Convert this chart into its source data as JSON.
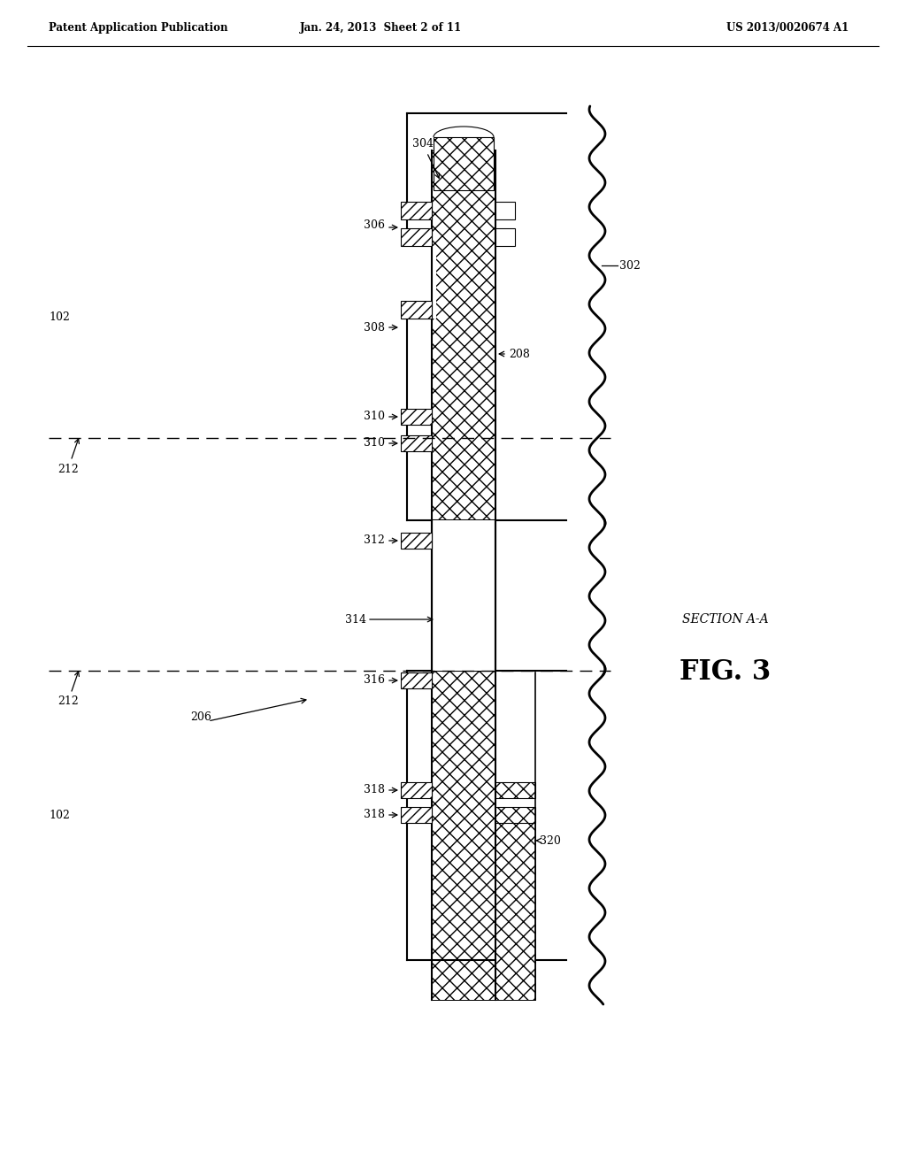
{
  "background_color": "#ffffff",
  "header_left": "Patent Application Publication",
  "header_mid": "Jan. 24, 2013  Sheet 2 of 11",
  "header_right": "US 2013/0020674 A1",
  "fig_label": "FIG. 3",
  "section_label": "SECTION A-A"
}
